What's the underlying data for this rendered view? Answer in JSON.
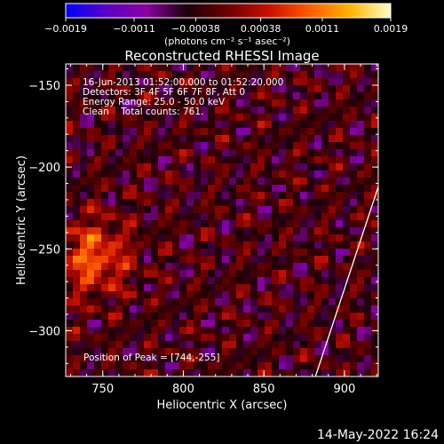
{
  "chart_data": {
    "type": "heatmap",
    "title": "Reconstructed RHESSI Image",
    "xlabel": "Heliocentric X (arcsec)",
    "ylabel": "Heliocentric Y (arcsec)",
    "xlim": [
      727,
      921
    ],
    "ylim": [
      -328,
      -137
    ],
    "x_ticks": [
      "750",
      "800",
      "850",
      "900"
    ],
    "x_tick_values": [
      750,
      800,
      850,
      900
    ],
    "y_ticks": [
      "−150",
      "−200",
      "−250",
      "−300"
    ],
    "y_tick_values": [
      -150,
      -200,
      -250,
      -300
    ],
    "colorbar": {
      "ticks": [
        "−0.0019",
        "−0.0011",
        "−0.00038",
        "0.00038",
        "0.0011",
        "0.0019"
      ],
      "tick_values": [
        -0.0019,
        -0.0011,
        -0.00038,
        0.00038,
        0.0011,
        0.0019
      ],
      "range": [
        -0.0019,
        0.0019
      ],
      "units": "(photons cm⁻² s⁻¹ asec⁻²)",
      "colors": [
        "#0000ff",
        "#5a00c8",
        "#8a00a0",
        "#1a0008",
        "#6e0000",
        "#c81000",
        "#ff5a00",
        "#ffb400",
        "#ffffc8"
      ]
    },
    "annotations": [
      "16-Jun-2013 01:52:00.000 to 01:52:20.000",
      "Detectors: 3F 4F 5F 6F 7F 8F, Att 0",
      "Energy Range: 25.0 - 50.0 keV",
      "Clean    Total counts: 761."
    ],
    "peak_label": "Position of Peak = [744,-255]",
    "peak": {
      "x": 744,
      "y": -255
    },
    "limb_line": [
      [
        882,
        -328
      ],
      [
        921,
        -212
      ]
    ]
  },
  "footer": {
    "timestamp": "14-May-2022 16:24"
  }
}
